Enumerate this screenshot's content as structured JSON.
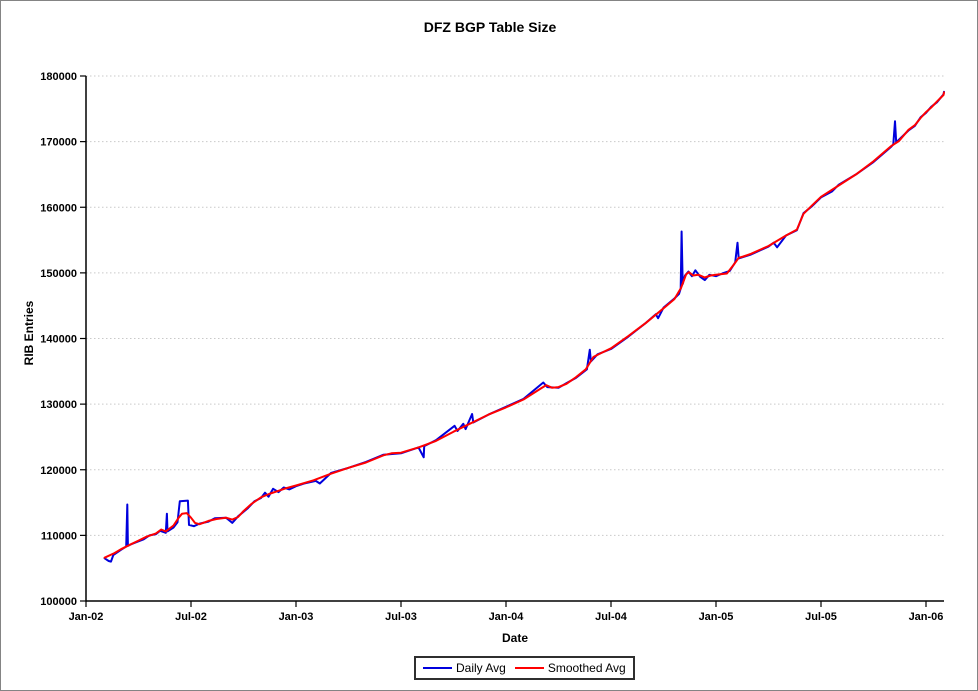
{
  "window": {
    "background": "#ffffff",
    "border_color": "#848484"
  },
  "chart_data": {
    "type": "line",
    "title": "DFZ BGP Table Size",
    "xlabel": "Date",
    "ylabel": "RIB Entries",
    "ylim": [
      100000,
      180000
    ],
    "y_ticks": [
      "100000",
      "110000",
      "120000",
      "130000",
      "140000",
      "150000",
      "160000",
      "170000",
      "180000"
    ],
    "x_ticks": [
      "Jan-02",
      "Jul-02",
      "Jan-03",
      "Jul-03",
      "Jan-04",
      "Jul-04",
      "Jan-05",
      "Jul-05",
      "Jan-06"
    ],
    "x_range": [
      "2002-01-01",
      "2006-02-05"
    ],
    "grid": "horizontal-dotted",
    "grid_color": "#c9c9c9",
    "axis_color": "#000000",
    "legend_position": "bottom-center",
    "series": [
      {
        "name": "Daily Avg",
        "color": "#0000dd",
        "points": [
          [
            "2002-02-03",
            106500
          ],
          [
            "2002-02-10",
            106100
          ],
          [
            "2002-02-14",
            106000
          ],
          [
            "2002-02-18",
            107000
          ],
          [
            "2002-03-01",
            107800
          ],
          [
            "2002-03-10",
            108300
          ],
          [
            "2002-03-12",
            114700
          ],
          [
            "2002-03-13",
            108400
          ],
          [
            "2002-03-20",
            108700
          ],
          [
            "2002-04-01",
            109100
          ],
          [
            "2002-04-10",
            109400
          ],
          [
            "2002-04-20",
            110000
          ],
          [
            "2002-05-01",
            110200
          ],
          [
            "2002-05-08",
            110700
          ],
          [
            "2002-05-18",
            110400
          ],
          [
            "2002-05-20",
            113300
          ],
          [
            "2002-05-21",
            110600
          ],
          [
            "2002-06-01",
            111200
          ],
          [
            "2002-06-08",
            112000
          ],
          [
            "2002-06-12",
            115200
          ],
          [
            "2002-06-26",
            115300
          ],
          [
            "2002-06-28",
            111600
          ],
          [
            "2002-07-06",
            111400
          ],
          [
            "2002-07-16",
            111800
          ],
          [
            "2002-08-01",
            112100
          ],
          [
            "2002-08-12",
            112600
          ],
          [
            "2002-09-01",
            112700
          ],
          [
            "2002-09-12",
            111900
          ],
          [
            "2002-09-22",
            112900
          ],
          [
            "2002-10-08",
            114100
          ],
          [
            "2002-10-20",
            115200
          ],
          [
            "2002-11-01",
            115700
          ],
          [
            "2002-11-08",
            116500
          ],
          [
            "2002-11-14",
            115900
          ],
          [
            "2002-11-22",
            117100
          ],
          [
            "2002-12-01",
            116600
          ],
          [
            "2002-12-10",
            117300
          ],
          [
            "2002-12-20",
            117000
          ],
          [
            "2003-01-01",
            117500
          ],
          [
            "2003-01-15",
            117900
          ],
          [
            "2003-02-05",
            118300
          ],
          [
            "2003-02-12",
            117900
          ],
          [
            "2003-03-01",
            119500
          ],
          [
            "2003-04-01",
            120300
          ],
          [
            "2003-05-01",
            121200
          ],
          [
            "2003-06-01",
            122300
          ],
          [
            "2003-07-01",
            122500
          ],
          [
            "2003-08-01",
            123400
          ],
          [
            "2003-08-10",
            121900
          ],
          [
            "2003-08-11",
            123600
          ],
          [
            "2003-09-01",
            124500
          ],
          [
            "2003-10-03",
            126700
          ],
          [
            "2003-10-08",
            125900
          ],
          [
            "2003-10-18",
            127000
          ],
          [
            "2003-10-22",
            126200
          ],
          [
            "2003-11-03",
            128500
          ],
          [
            "2003-11-05",
            127200
          ],
          [
            "2003-12-01",
            128400
          ],
          [
            "2004-01-01",
            129600
          ],
          [
            "2004-02-01",
            130800
          ],
          [
            "2004-03-05",
            133300
          ],
          [
            "2004-03-12",
            132600
          ],
          [
            "2004-04-01",
            132500
          ],
          [
            "2004-04-15",
            133200
          ],
          [
            "2004-05-01",
            134000
          ],
          [
            "2004-05-20",
            135300
          ],
          [
            "2004-05-25",
            138300
          ],
          [
            "2004-05-27",
            136500
          ],
          [
            "2004-06-08",
            137600
          ],
          [
            "2004-07-01",
            138400
          ],
          [
            "2004-08-01",
            140300
          ],
          [
            "2004-09-01",
            142400
          ],
          [
            "2004-09-18",
            143700
          ],
          [
            "2004-09-22",
            143100
          ],
          [
            "2004-10-01",
            144700
          ],
          [
            "2004-10-20",
            146100
          ],
          [
            "2004-10-28",
            146800
          ],
          [
            "2004-10-31",
            147600
          ],
          [
            "2004-11-02",
            156300
          ],
          [
            "2004-11-04",
            148300
          ],
          [
            "2004-11-08",
            149600
          ],
          [
            "2004-11-14",
            150200
          ],
          [
            "2004-11-20",
            149500
          ],
          [
            "2004-11-26",
            150400
          ],
          [
            "2004-12-04",
            149400
          ],
          [
            "2004-12-12",
            148900
          ],
          [
            "2004-12-20",
            149700
          ],
          [
            "2005-01-01",
            149500
          ],
          [
            "2005-01-12",
            149900
          ],
          [
            "2005-01-25",
            150300
          ],
          [
            "2005-02-04",
            151600
          ],
          [
            "2005-02-08",
            154600
          ],
          [
            "2005-02-10",
            152200
          ],
          [
            "2005-03-01",
            152800
          ],
          [
            "2005-04-01",
            154000
          ],
          [
            "2005-04-10",
            154600
          ],
          [
            "2005-04-16",
            153900
          ],
          [
            "2005-05-01",
            155700
          ],
          [
            "2005-05-20",
            156500
          ],
          [
            "2005-06-01",
            159100
          ],
          [
            "2005-06-15",
            160100
          ],
          [
            "2005-07-01",
            161500
          ],
          [
            "2005-07-20",
            162400
          ],
          [
            "2005-08-01",
            163400
          ],
          [
            "2005-09-01",
            165000
          ],
          [
            "2005-10-01",
            166900
          ],
          [
            "2005-11-01",
            169200
          ],
          [
            "2005-11-05",
            169600
          ],
          [
            "2005-11-08",
            173100
          ],
          [
            "2005-11-10",
            169900
          ],
          [
            "2005-12-01",
            171700
          ],
          [
            "2005-12-12",
            172400
          ],
          [
            "2005-12-22",
            173700
          ],
          [
            "2006-01-01",
            174400
          ],
          [
            "2006-01-10",
            175300
          ],
          [
            "2006-01-20",
            176000
          ],
          [
            "2006-02-01",
            177200
          ],
          [
            "2006-02-05",
            177600
          ]
        ]
      },
      {
        "name": "Smoothed Avg",
        "color": "#ff0000",
        "points": [
          [
            "2002-02-03",
            106600
          ],
          [
            "2002-02-20",
            107300
          ],
          [
            "2002-03-01",
            107900
          ],
          [
            "2002-03-15",
            108500
          ],
          [
            "2002-04-01",
            109200
          ],
          [
            "2002-04-15",
            109800
          ],
          [
            "2002-05-01",
            110300
          ],
          [
            "2002-05-10",
            110900
          ],
          [
            "2002-05-18",
            110600
          ],
          [
            "2002-06-01",
            111500
          ],
          [
            "2002-06-10",
            112700
          ],
          [
            "2002-06-16",
            113300
          ],
          [
            "2002-06-24",
            113400
          ],
          [
            "2002-07-01",
            112700
          ],
          [
            "2002-07-08",
            111900
          ],
          [
            "2002-07-16",
            111700
          ],
          [
            "2002-08-01",
            112200
          ],
          [
            "2002-08-15",
            112500
          ],
          [
            "2002-09-01",
            112700
          ],
          [
            "2002-09-12",
            112400
          ],
          [
            "2002-09-22",
            112800
          ],
          [
            "2002-10-01",
            113700
          ],
          [
            "2002-10-15",
            114800
          ],
          [
            "2002-11-01",
            115800
          ],
          [
            "2002-11-15",
            116300
          ],
          [
            "2002-12-01",
            116800
          ],
          [
            "2002-12-15",
            117200
          ],
          [
            "2003-01-01",
            117600
          ],
          [
            "2003-02-01",
            118400
          ],
          [
            "2003-03-01",
            119400
          ],
          [
            "2003-04-01",
            120300
          ],
          [
            "2003-05-01",
            121100
          ],
          [
            "2003-06-01",
            122200
          ],
          [
            "2003-06-15",
            122500
          ],
          [
            "2003-07-01",
            122600
          ],
          [
            "2003-08-01",
            123400
          ],
          [
            "2003-09-01",
            124400
          ],
          [
            "2003-10-01",
            125800
          ],
          [
            "2003-11-01",
            127100
          ],
          [
            "2003-12-01",
            128400
          ],
          [
            "2004-01-01",
            129500
          ],
          [
            "2004-02-01",
            130700
          ],
          [
            "2004-03-01",
            132400
          ],
          [
            "2004-03-10",
            132900
          ],
          [
            "2004-03-20",
            132500
          ],
          [
            "2004-04-01",
            132600
          ],
          [
            "2004-04-15",
            133100
          ],
          [
            "2004-05-01",
            134100
          ],
          [
            "2004-05-18",
            135300
          ],
          [
            "2004-06-01",
            137200
          ],
          [
            "2004-06-15",
            137800
          ],
          [
            "2004-07-01",
            138500
          ],
          [
            "2004-08-01",
            140400
          ],
          [
            "2004-09-01",
            142400
          ],
          [
            "2004-10-01",
            144600
          ],
          [
            "2004-10-20",
            146000
          ],
          [
            "2004-11-01",
            147700
          ],
          [
            "2004-11-10",
            149800
          ],
          [
            "2004-11-15",
            150100
          ],
          [
            "2004-11-22",
            149600
          ],
          [
            "2004-12-01",
            149700
          ],
          [
            "2004-12-12",
            149300
          ],
          [
            "2004-12-22",
            149600
          ],
          [
            "2005-01-01",
            149700
          ],
          [
            "2005-01-20",
            149900
          ],
          [
            "2005-02-01",
            151200
          ],
          [
            "2005-02-10",
            152300
          ],
          [
            "2005-02-18",
            152500
          ],
          [
            "2005-03-01",
            152900
          ],
          [
            "2005-04-01",
            154100
          ],
          [
            "2005-05-01",
            155700
          ],
          [
            "2005-05-20",
            156600
          ],
          [
            "2005-06-01",
            159000
          ],
          [
            "2005-06-15",
            160200
          ],
          [
            "2005-07-01",
            161600
          ],
          [
            "2005-08-01",
            163300
          ],
          [
            "2005-09-01",
            165000
          ],
          [
            "2005-10-01",
            167000
          ],
          [
            "2005-11-01",
            169300
          ],
          [
            "2005-11-15",
            170100
          ],
          [
            "2005-12-01",
            171800
          ],
          [
            "2005-12-12",
            172500
          ],
          [
            "2005-12-22",
            173600
          ],
          [
            "2006-01-01",
            174500
          ],
          [
            "2006-01-10",
            175200
          ],
          [
            "2006-01-20",
            176100
          ],
          [
            "2006-02-01",
            177100
          ],
          [
            "2006-02-05",
            177500
          ]
        ]
      }
    ]
  }
}
